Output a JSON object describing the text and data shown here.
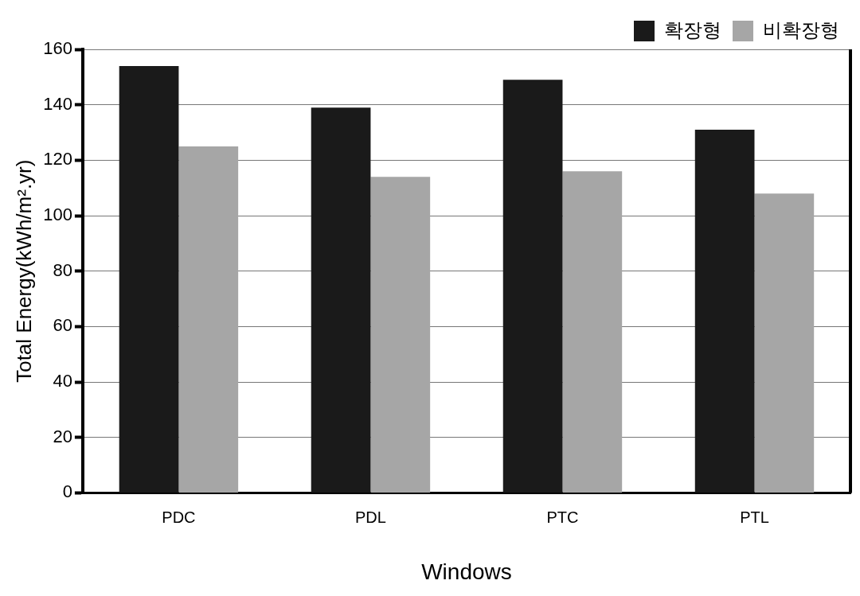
{
  "chart_data": {
    "type": "bar",
    "xlabel": "Windows",
    "ylabel": "Total Energy(kWh/m².yr)",
    "categories": [
      "PDC",
      "PDL",
      "PTC",
      "PTL"
    ],
    "series": [
      {
        "name": "확장형",
        "color": "#1a1a1a",
        "values": [
          154,
          139,
          149,
          131
        ]
      },
      {
        "name": "비확장형",
        "color": "#a6a6a6",
        "values": [
          125,
          114,
          116,
          108
        ]
      }
    ],
    "ylim": [
      0,
      160
    ],
    "yticks": [
      0,
      20,
      40,
      60,
      80,
      100,
      120,
      140,
      160
    ],
    "grid": "y",
    "legend": "top right"
  }
}
